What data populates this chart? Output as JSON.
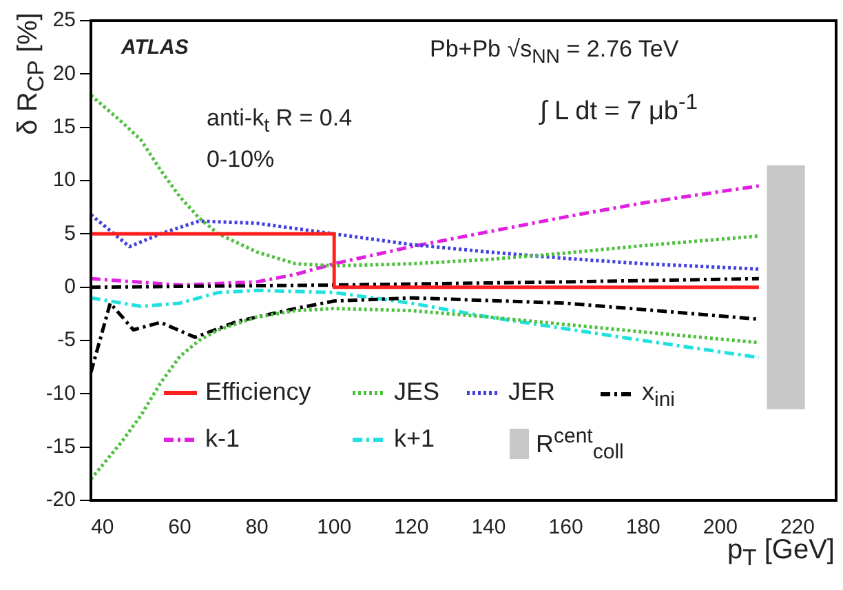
{
  "chart_data": {
    "type": "line",
    "xlabel": "p$_{T}$ [GeV]",
    "ylabel": "δ R$_{CP}$ [%]",
    "xlim": [
      37,
      230
    ],
    "ylim": [
      -20,
      25
    ],
    "xticks": [
      40,
      60,
      80,
      100,
      120,
      140,
      160,
      180,
      200,
      220
    ],
    "yticks": [
      -20,
      -15,
      -10,
      -5,
      0,
      5,
      10,
      15,
      20,
      25
    ],
    "grid": false,
    "legend": "bottom",
    "marker": "none",
    "annotations": [
      "ATLAS",
      "Pb+Pb √s$_{NN}$ = 2.76 TeV",
      "anti-k$_{t}$ R = 0.4",
      "0-10%",
      "∫ L dt = 7 μb$^{-1}$"
    ],
    "series": [
      {
        "name": "Efficiency",
        "color": "#ff2020",
        "line_style": "solid",
        "x": [
          37,
          100,
          100,
          210
        ],
        "values": [
          5,
          5,
          0,
          0
        ]
      },
      {
        "name": "JES",
        "color": "#50c040",
        "line_style": "dotted",
        "x": [
          37,
          45,
          50,
          55,
          60,
          65,
          70,
          80,
          90,
          100,
          120,
          140,
          160,
          180,
          210
        ],
        "values": [
          18,
          15.5,
          13.8,
          11,
          8.5,
          6.5,
          5,
          3.3,
          2.2,
          2,
          2.2,
          2.6,
          3.2,
          3.9,
          4.8
        ]
      },
      {
        "color": "#50c040",
        "line_style": "dotted",
        "x": [
          37,
          45,
          50,
          55,
          60,
          65,
          70,
          80,
          90,
          100,
          120,
          140,
          160,
          180,
          210
        ],
        "values": [
          -18,
          -14.5,
          -12,
          -9,
          -6.5,
          -5,
          -4,
          -2.8,
          -2.2,
          -2,
          -2.2,
          -2.8,
          -3.5,
          -4.2,
          -5.2
        ]
      },
      {
        "name": "JER",
        "color": "#4040e0",
        "line_style": "dotted",
        "x": [
          37,
          47,
          55,
          65,
          80,
          100,
          120,
          140,
          160,
          180,
          210
        ],
        "values": [
          6.8,
          3.8,
          5,
          6.2,
          6,
          5,
          4,
          3.3,
          2.7,
          2.2,
          1.7
        ]
      },
      {
        "name": "x$_{ini}$",
        "color": "#000000",
        "line_style": "dashed",
        "x": [
          37,
          42,
          48,
          55,
          64,
          75,
          90,
          100,
          120,
          160,
          210
        ],
        "values": [
          -8,
          -1.5,
          -4,
          -3.3,
          -4.7,
          -3.2,
          -2,
          -1.3,
          -1,
          -1.5,
          -3
        ]
      },
      {
        "color": "#000000",
        "line_style": "dashed",
        "x": [
          37,
          100,
          160,
          210
        ],
        "values": [
          0,
          0.2,
          0.5,
          0.8
        ]
      },
      {
        "name": "k-1",
        "color": "#e020e0",
        "line_style": "dashed",
        "x": [
          37,
          60,
          80,
          90,
          100,
          120,
          140,
          160,
          180,
          210
        ],
        "values": [
          0.8,
          0.2,
          0.5,
          1.2,
          2.2,
          3.8,
          5.2,
          6.6,
          7.9,
          9.5
        ]
      },
      {
        "name": "k+1",
        "color": "#20e0e0",
        "line_style": "dashed",
        "x": [
          37,
          50,
          60,
          70,
          80,
          100,
          120,
          140,
          160,
          180,
          210
        ],
        "values": [
          -1,
          -1.8,
          -1.5,
          -0.5,
          -0.3,
          -0.5,
          -1.5,
          -2.8,
          -3.9,
          -5,
          -6.6
        ]
      },
      {
        "name": "R$^{cent}$$_{coll}$",
        "type": "bar",
        "color": "#c8c8c8",
        "x": [
          217
        ],
        "base": [
          -11.4
        ],
        "values": [
          22.8
        ]
      }
    ]
  }
}
